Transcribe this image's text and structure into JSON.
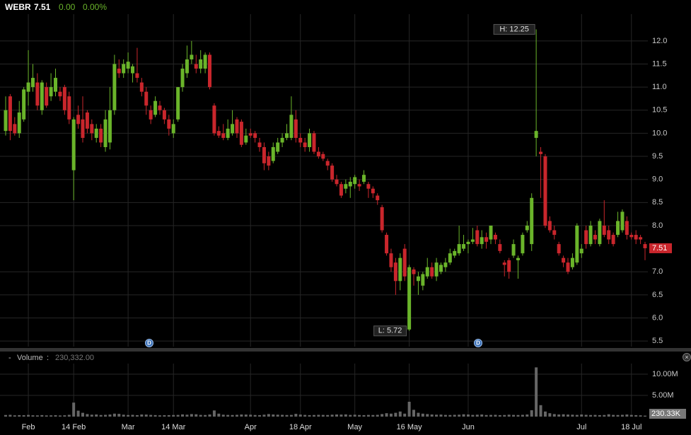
{
  "header": {
    "symbol": "WEBR",
    "last": "7.51",
    "change": "0.00",
    "change_pct": "0.00%"
  },
  "chart_data": [
    {
      "type": "candlestick",
      "categories": [
        null,
        null,
        null,
        null,
        null,
        "Feb",
        null,
        null,
        null,
        null,
        null,
        null,
        null,
        null,
        null,
        "14 Feb",
        null,
        null,
        null,
        null,
        null,
        null,
        null,
        null,
        null,
        null,
        null,
        "Mar",
        null,
        null,
        null,
        null,
        null,
        null,
        null,
        null,
        null,
        "14 Mar",
        null,
        null,
        null,
        null,
        null,
        null,
        null,
        null,
        null,
        null,
        null,
        null,
        null,
        null,
        null,
        null,
        "Apr",
        null,
        null,
        null,
        null,
        null,
        null,
        null,
        null,
        null,
        null,
        "18 Apr",
        null,
        null,
        null,
        null,
        null,
        null,
        null,
        null,
        null,
        null,
        null,
        "May",
        null,
        null,
        null,
        null,
        null,
        null,
        null,
        null,
        null,
        null,
        null,
        "16 May",
        null,
        null,
        null,
        null,
        null,
        null,
        null,
        null,
        null,
        null,
        null,
        null,
        "Jun",
        null,
        null,
        null,
        null,
        null,
        null,
        null,
        null,
        null,
        null,
        null,
        null,
        null,
        null,
        null,
        null,
        null,
        null,
        null,
        null,
        null,
        null,
        null,
        null,
        "Jul",
        null,
        null,
        null,
        null,
        null,
        null,
        null,
        null,
        null,
        null,
        "18 Jul",
        null,
        null,
        null
      ],
      "open": [
        10.05,
        10.8,
        10.2,
        10.0,
        10.3,
        10.9,
        11.0,
        11.1,
        10.5,
        11.0,
        10.8,
        10.9,
        10.9,
        11.0,
        10.8,
        9.2,
        10.4,
        10.3,
        10.45,
        10.2,
        9.9,
        10.1,
        9.7,
        9.8,
        10.5,
        11.4,
        11.3,
        11.4,
        11.3,
        11.3,
        11.1,
        10.9,
        10.5,
        10.4,
        10.6,
        10.5,
        10.3,
        10.0,
        10.3,
        11.0,
        11.3,
        11.6,
        11.5,
        11.4,
        11.4,
        11.7,
        10.6,
        10.05,
        10.0,
        9.9,
        10.0,
        10.3,
        10.25,
        9.8,
        10.0,
        10.0,
        9.8,
        9.7,
        9.5,
        9.4,
        9.6,
        9.8,
        9.9,
        9.9,
        10.3,
        9.9,
        9.8,
        9.7,
        10.0,
        9.6,
        9.55,
        9.4,
        9.3,
        9.0,
        8.9,
        8.8,
        8.85,
        8.9,
        8.9,
        8.95,
        8.9,
        8.8,
        8.65,
        8.4,
        7.8,
        7.4,
        7.2,
        6.8,
        7.5,
        5.75,
        7.05,
        6.8,
        6.7,
        6.9,
        7.1,
        6.9,
        7.0,
        7.1,
        7.2,
        7.35,
        7.4,
        7.5,
        7.6,
        7.65,
        7.9,
        7.6,
        7.75,
        7.7,
        7.8,
        7.6,
        7.2,
        7.25,
        7.35,
        7.25,
        7.4,
        7.9,
        7.6,
        9.9,
        9.6,
        9.5,
        8.1,
        7.9,
        7.6,
        7.3,
        7.2,
        7.1,
        7.2,
        7.4,
        7.9,
        7.6,
        7.8,
        7.6,
        8.0,
        7.9,
        7.8,
        7.8,
        7.9,
        8.1,
        7.8,
        7.8,
        7.75,
        7.6
      ],
      "high": [
        10.8,
        10.85,
        10.35,
        10.7,
        11.0,
        11.8,
        11.5,
        11.3,
        11.15,
        11.1,
        11.3,
        11.4,
        11.0,
        11.05,
        10.9,
        10.35,
        10.6,
        10.8,
        10.5,
        10.3,
        10.2,
        10.2,
        10.5,
        11.0,
        11.7,
        11.6,
        11.6,
        11.75,
        11.5,
        11.85,
        11.2,
        11.0,
        10.6,
        10.8,
        10.7,
        10.55,
        10.4,
        10.3,
        11.0,
        11.5,
        11.9,
        12.0,
        11.7,
        11.8,
        11.75,
        11.75,
        10.65,
        10.15,
        10.2,
        10.3,
        10.5,
        10.35,
        10.3,
        10.1,
        10.1,
        10.05,
        9.9,
        9.8,
        9.6,
        9.8,
        9.9,
        10.0,
        10.2,
        10.8,
        10.5,
        10.0,
        9.9,
        10.1,
        10.05,
        9.7,
        9.6,
        9.45,
        9.35,
        9.1,
        8.95,
        9.0,
        9.05,
        9.1,
        9.0,
        9.2,
        8.95,
        8.85,
        8.7,
        8.45,
        7.85,
        7.5,
        7.3,
        7.4,
        7.6,
        7.15,
        7.1,
        7.0,
        7.0,
        7.3,
        7.2,
        7.3,
        7.2,
        7.3,
        7.5,
        7.5,
        8.0,
        7.8,
        7.7,
        7.95,
        8.0,
        7.9,
        7.85,
        8.0,
        7.85,
        7.7,
        7.25,
        7.3,
        7.7,
        7.35,
        7.85,
        8.1,
        8.7,
        12.25,
        9.7,
        9.55,
        8.2,
        8.0,
        7.65,
        7.35,
        7.3,
        7.4,
        8.05,
        7.6,
        8.0,
        8.1,
        7.9,
        8.15,
        8.55,
        8.0,
        7.85,
        8.3,
        8.35,
        8.2,
        7.85,
        7.9,
        7.8,
        7.65
      ],
      "low": [
        9.95,
        9.85,
        9.95,
        9.9,
        10.25,
        10.6,
        10.9,
        10.5,
        10.4,
        10.55,
        10.7,
        10.8,
        10.7,
        10.4,
        10.2,
        8.55,
        10.1,
        9.8,
        10.0,
        9.85,
        9.8,
        9.7,
        9.6,
        9.65,
        10.4,
        11.2,
        11.2,
        11.3,
        11.1,
        11.1,
        10.8,
        10.4,
        10.2,
        10.35,
        10.4,
        10.2,
        9.95,
        9.9,
        10.25,
        10.9,
        11.2,
        11.5,
        11.3,
        11.3,
        11.3,
        10.95,
        9.95,
        9.9,
        9.85,
        9.85,
        9.95,
        9.9,
        9.7,
        9.75,
        9.9,
        9.8,
        9.6,
        9.2,
        9.2,
        9.35,
        9.55,
        9.7,
        9.85,
        9.85,
        9.8,
        9.7,
        9.6,
        9.6,
        9.55,
        9.45,
        9.4,
        9.2,
        8.95,
        8.85,
        8.6,
        8.7,
        8.6,
        8.8,
        8.75,
        8.9,
        8.6,
        8.6,
        8.45,
        7.85,
        7.35,
        7.0,
        6.5,
        6.6,
        6.8,
        5.72,
        6.7,
        6.5,
        6.6,
        6.85,
        6.85,
        6.8,
        6.95,
        7.0,
        7.15,
        7.3,
        7.35,
        7.45,
        7.4,
        7.6,
        7.55,
        7.5,
        7.5,
        7.6,
        7.6,
        7.4,
        6.9,
        6.85,
        7.3,
        6.85,
        7.35,
        7.85,
        7.45,
        9.5,
        8.6,
        7.95,
        7.85,
        7.7,
        7.35,
        7.1,
        6.95,
        7.05,
        7.15,
        7.3,
        7.5,
        7.55,
        7.6,
        7.55,
        7.75,
        7.6,
        7.55,
        7.75,
        7.85,
        7.7,
        7.7,
        7.6,
        7.6,
        7.25
      ],
      "close": [
        10.5,
        10.05,
        10.0,
        10.45,
        10.95,
        11.1,
        11.2,
        10.6,
        11.1,
        10.6,
        11.0,
        11.2,
        10.8,
        10.5,
        10.3,
        10.3,
        10.2,
        9.9,
        10.1,
        10.0,
        10.1,
        9.8,
        10.3,
        10.5,
        11.5,
        11.3,
        11.5,
        11.55,
        11.45,
        11.2,
        10.9,
        10.6,
        10.3,
        10.7,
        10.5,
        10.3,
        10.1,
        10.2,
        11.0,
        11.4,
        11.6,
        11.7,
        11.4,
        11.6,
        11.7,
        11.0,
        10.0,
        9.95,
        9.9,
        10.1,
        10.2,
        10.0,
        9.75,
        9.95,
        9.95,
        9.9,
        9.7,
        9.35,
        9.3,
        9.7,
        9.8,
        9.9,
        10.0,
        10.4,
        9.9,
        9.8,
        9.7,
        10.0,
        9.6,
        9.5,
        9.45,
        9.3,
        9.0,
        8.9,
        8.65,
        8.9,
        8.95,
        9.05,
        8.85,
        9.1,
        8.8,
        8.7,
        8.55,
        7.9,
        7.4,
        7.1,
        6.8,
        7.3,
        6.9,
        7.1,
        6.95,
        6.9,
        6.95,
        7.1,
        6.9,
        7.2,
        7.15,
        7.2,
        7.4,
        7.45,
        7.6,
        7.6,
        7.65,
        7.7,
        7.6,
        7.75,
        7.65,
        8.0,
        7.7,
        7.45,
        7.15,
        7.0,
        7.6,
        7.3,
        7.8,
        8.0,
        8.6,
        10.05,
        9.55,
        8.0,
        7.9,
        7.8,
        7.4,
        7.2,
        7.0,
        7.3,
        8.0,
        7.5,
        7.6,
        8.0,
        7.7,
        8.1,
        7.8,
        7.7,
        7.6,
        8.1,
        8.3,
        7.8,
        7.75,
        7.7,
        7.7,
        7.51
      ],
      "up_color": "#6ab42a",
      "down_color": "#c9262c",
      "ylim": [
        5.38,
        12.58
      ],
      "yticks": [
        5.5,
        {
          "value": 6,
          "label": "6.0"
        },
        6.5,
        {
          "value": 7,
          "label": "7.0"
        },
        {
          "value": 8,
          "label": "8.0"
        },
        8.5,
        {
          "value": 9,
          "label": "9.0"
        },
        9.5,
        {
          "value": 10,
          "label": "10.0"
        },
        10.5,
        {
          "value": 11,
          "label": "11.0"
        },
        11.5,
        {
          "value": 12,
          "label": "12.0"
        }
      ],
      "grid": true,
      "high_label": "H: 12.25",
      "low_label": "L: 5.72",
      "last_tag": "7.51",
      "events": [
        "D",
        "D"
      ]
    },
    {
      "type": "bar",
      "title": "Volume",
      "current_label": "230,332.00",
      "values": [
        380000,
        420000,
        300000,
        350000,
        330000,
        400000,
        310000,
        290000,
        360000,
        280000,
        300000,
        330000,
        270000,
        310000,
        420000,
        3300000,
        1400000,
        900000,
        600000,
        450000,
        500000,
        380000,
        420000,
        500000,
        700000,
        650000,
        450000,
        380000,
        420000,
        350000,
        500000,
        480000,
        400000,
        360000,
        300000,
        330000,
        350000,
        380000,
        400000,
        520000,
        450000,
        600000,
        550000,
        400000,
        380000,
        500000,
        1450000,
        700000,
        450000,
        400000,
        380000,
        420000,
        500000,
        480000,
        450000,
        380000,
        350000,
        450000,
        600000,
        500000,
        450000,
        420000,
        380000,
        400000,
        650000,
        480000,
        400000,
        350000,
        380000,
        420000,
        400000,
        380000,
        450000,
        500000,
        480000,
        520000,
        400000,
        450000,
        380000,
        350000,
        400000,
        380000,
        420000,
        600000,
        800000,
        700000,
        900000,
        1200000,
        700000,
        3500000,
        1600000,
        900000,
        700000,
        600000,
        500000,
        450000,
        480000,
        400000,
        380000,
        420000,
        450000,
        550000,
        500000,
        400000,
        450000,
        500000,
        380000,
        400000,
        420000,
        350000,
        380000,
        450000,
        400000,
        380000,
        420000,
        500000,
        1500000,
        11600000,
        2700000,
        1200000,
        800000,
        600000,
        500000,
        550000,
        480000,
        450000,
        400000,
        500000,
        420000,
        380000,
        400000,
        350000,
        380000,
        550000,
        400000,
        380000,
        420000,
        500000,
        400000,
        350000,
        300000,
        230332
      ],
      "color": "#666666",
      "ylim": [
        0,
        12500000
      ],
      "yticks": [
        {
          "value": 5000000,
          "label": "5.00M"
        },
        {
          "value": 10000000,
          "label": "10.00M"
        }
      ],
      "tag_label": "230.33K"
    }
  ]
}
